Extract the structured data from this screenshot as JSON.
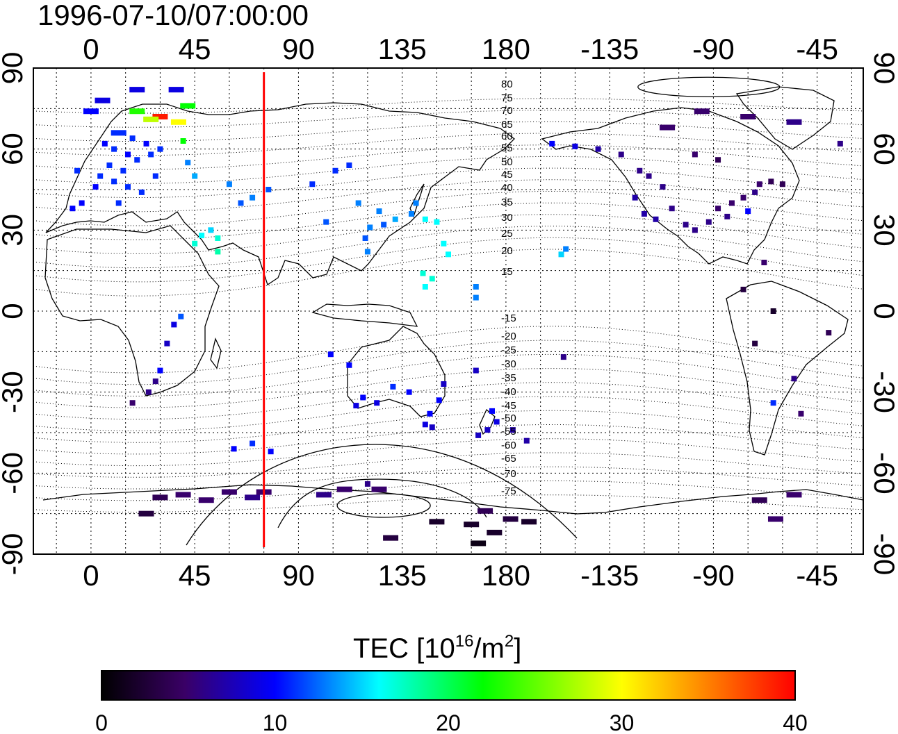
{
  "title": "1996-07-10/07:00:00",
  "map": {
    "lon_ticks_top": [
      "0",
      "45",
      "90",
      "135",
      "180",
      "-135",
      "-90",
      "-45"
    ],
    "lon_ticks_bottom": [
      "0",
      "45",
      "90",
      "135",
      "180",
      "-135",
      "-90",
      "-45"
    ],
    "lat_ticks_left": [
      "90",
      "60",
      "30",
      "0",
      "-30",
      "-60",
      "-90"
    ],
    "lat_ticks_right": [
      "90",
      "60",
      "30",
      "0",
      "-30",
      "-60",
      "-90"
    ],
    "magnetic_lat_labels_north": [
      "80",
      "75",
      "70",
      "65",
      "60",
      "55",
      "50",
      "45",
      "40",
      "35",
      "30",
      "25",
      "20",
      "15"
    ],
    "magnetic_lat_labels_south": [
      "-15",
      "-20",
      "-25",
      "-30",
      "-35",
      "-40",
      "-45",
      "-50",
      "-55",
      "-60",
      "-65",
      "-70",
      "-75"
    ],
    "marker_line_longitude": 75,
    "marker_line_color": "#ff0000",
    "grid": true,
    "lon_range": [
      -25,
      335
    ],
    "lat_range": [
      -90,
      90
    ]
  },
  "colorbar": {
    "label_prefix": "TEC  [10",
    "label_sup1": "16",
    "label_mid": "/m",
    "label_sup2": "2",
    "label_suffix": "]",
    "ticks": [
      "0",
      "10",
      "20",
      "30",
      "40"
    ],
    "range": [
      0,
      40
    ],
    "colors": [
      "#000000",
      "#3a0066",
      "#0000ff",
      "#00ffff",
      "#00ff00",
      "#ffff00",
      "#ff0000"
    ]
  },
  "tec_cells": [
    {
      "lon": 12,
      "lat": 66,
      "tec": 11
    },
    {
      "lon": 18,
      "lat": 64,
      "tec": 11
    },
    {
      "lon": 24,
      "lat": 62,
      "tec": 10
    },
    {
      "lon": 10,
      "lat": 60,
      "tec": 11
    },
    {
      "lon": 16,
      "lat": 58,
      "tec": 10
    },
    {
      "lon": 20,
      "lat": 56,
      "tec": 11
    },
    {
      "lon": 8,
      "lat": 54,
      "tec": 11
    },
    {
      "lon": 14,
      "lat": 52,
      "tec": 11
    },
    {
      "lon": 4,
      "lat": 50,
      "tec": 11
    },
    {
      "lon": 10,
      "lat": 48,
      "tec": 11
    },
    {
      "lon": 2,
      "lat": 46,
      "tec": 10
    },
    {
      "lon": 16,
      "lat": 46,
      "tec": 11
    },
    {
      "lon": 26,
      "lat": 58,
      "tec": 11
    },
    {
      "lon": 30,
      "lat": 60,
      "tec": 11
    },
    {
      "lon": 12,
      "lat": 40,
      "tec": 11
    },
    {
      "lon": -4,
      "lat": 40,
      "tec": 10
    },
    {
      "lon": -8,
      "lat": 38,
      "tec": 10
    },
    {
      "lon": 22,
      "lat": 44,
      "tec": 11
    },
    {
      "lon": 28,
      "lat": 50,
      "tec": 11
    },
    {
      "lon": 6,
      "lat": 62,
      "tec": 10
    },
    {
      "lon": -6,
      "lat": 52,
      "tec": 11
    },
    {
      "lon": 20,
      "lat": 82,
      "tec": 9
    },
    {
      "lon": 37,
      "lat": 82,
      "tec": 9
    },
    {
      "lon": 5,
      "lat": 78,
      "tec": 9
    },
    {
      "lon": 0,
      "lat": 74,
      "tec": 10
    },
    {
      "lon": 20,
      "lat": 74,
      "tec": 23
    },
    {
      "lon": 30,
      "lat": 72,
      "tec": 39
    },
    {
      "lon": 26,
      "lat": 71,
      "tec": 28
    },
    {
      "lon": 38,
      "lat": 70,
      "tec": 30
    },
    {
      "lon": 42,
      "lat": 76,
      "tec": 22
    },
    {
      "lon": 40,
      "lat": 63,
      "tec": 22
    },
    {
      "lon": 42,
      "lat": 55,
      "tec": 13
    },
    {
      "lon": 45,
      "lat": 50,
      "tec": 14
    },
    {
      "lon": 60,
      "lat": 47,
      "tec": 13
    },
    {
      "lon": 65,
      "lat": 40,
      "tec": 12
    },
    {
      "lon": 70,
      "lat": 42,
      "tec": 13
    },
    {
      "lon": 77,
      "lat": 45,
      "tec": 12
    },
    {
      "lon": 48,
      "lat": 28,
      "tec": 16
    },
    {
      "lon": 52,
      "lat": 30,
      "tec": 15
    },
    {
      "lon": 45,
      "lat": 25,
      "tec": 17
    },
    {
      "lon": 55,
      "lat": 27,
      "tec": 17
    },
    {
      "lon": 55,
      "lat": 22,
      "tec": 18
    },
    {
      "lon": 96,
      "lat": 47,
      "tec": 11
    },
    {
      "lon": 106,
      "lat": 52,
      "tec": 11
    },
    {
      "lon": 112,
      "lat": 54,
      "tec": 11
    },
    {
      "lon": 116,
      "lat": 40,
      "tec": 13
    },
    {
      "lon": 121,
      "lat": 31,
      "tec": 13
    },
    {
      "lon": 125,
      "lat": 37,
      "tec": 13
    },
    {
      "lon": 119,
      "lat": 27,
      "tec": 12
    },
    {
      "lon": 120,
      "lat": 22,
      "tec": 13
    },
    {
      "lon": 127,
      "lat": 32,
      "tec": 12
    },
    {
      "lon": 132,
      "lat": 34,
      "tec": 14
    },
    {
      "lon": 139,
      "lat": 36,
      "tec": 13
    },
    {
      "lon": 141,
      "lat": 40,
      "tec": 13
    },
    {
      "lon": 145,
      "lat": 34,
      "tec": 16
    },
    {
      "lon": 150,
      "lat": 33,
      "tec": 16
    },
    {
      "lon": 102,
      "lat": 33,
      "tec": 12
    },
    {
      "lon": 153,
      "lat": 25,
      "tec": 16
    },
    {
      "lon": 155,
      "lat": 21,
      "tec": 16
    },
    {
      "lon": 144,
      "lat": 14,
      "tec": 17
    },
    {
      "lon": 148,
      "lat": 12,
      "tec": 17
    },
    {
      "lon": 145,
      "lat": 9,
      "tec": 16
    },
    {
      "lon": 167,
      "lat": 9,
      "tec": 13
    },
    {
      "lon": 167,
      "lat": 5,
      "tec": 13
    },
    {
      "lon": 204,
      "lat": 21,
      "tec": 15
    },
    {
      "lon": 206,
      "lat": 23,
      "tec": 13
    },
    {
      "lon": 39,
      "lat": -2,
      "tec": 12
    },
    {
      "lon": 36,
      "lat": -5,
      "tec": 9
    },
    {
      "lon": 33,
      "lat": -12,
      "tec": 8
    },
    {
      "lon": 28,
      "lat": -26,
      "tec": 6
    },
    {
      "lon": 25,
      "lat": -30,
      "tec": 6
    },
    {
      "lon": 18,
      "lat": -34,
      "tec": 5
    },
    {
      "lon": 30,
      "lat": -22,
      "tec": 10
    },
    {
      "lon": 104,
      "lat": -16,
      "tec": 10
    },
    {
      "lon": 112,
      "lat": -20,
      "tec": 10
    },
    {
      "lon": 118,
      "lat": -32,
      "tec": 10
    },
    {
      "lon": 115,
      "lat": -35,
      "tec": 9
    },
    {
      "lon": 124,
      "lat": -34,
      "tec": 9
    },
    {
      "lon": 131,
      "lat": -28,
      "tec": 11
    },
    {
      "lon": 138,
      "lat": -30,
      "tec": 10
    },
    {
      "lon": 147,
      "lat": -38,
      "tec": 10
    },
    {
      "lon": 151,
      "lat": -33,
      "tec": 10
    },
    {
      "lon": 145,
      "lat": -42,
      "tec": 9
    },
    {
      "lon": 153,
      "lat": -27,
      "tec": 8
    },
    {
      "lon": 167,
      "lat": -22,
      "tec": 8
    },
    {
      "lon": 174,
      "lat": -37,
      "tec": 10
    },
    {
      "lon": 176,
      "lat": -41,
      "tec": 9
    },
    {
      "lon": 172,
      "lat": -44,
      "tec": 8
    },
    {
      "lon": 168,
      "lat": -46,
      "tec": 8
    },
    {
      "lon": 183,
      "lat": -44,
      "tec": 7
    },
    {
      "lon": 189,
      "lat": -48,
      "tec": 7
    },
    {
      "lon": 205,
      "lat": -17,
      "tec": 6
    },
    {
      "lon": 148,
      "lat": -43,
      "tec": 8
    },
    {
      "lon": 70,
      "lat": -49,
      "tec": 11
    },
    {
      "lon": 78,
      "lat": -52,
      "tec": 10
    },
    {
      "lon": 62,
      "lat": -51,
      "tec": 10
    },
    {
      "lon": 30,
      "lat": -69,
      "tec": 4
    },
    {
      "lon": 40,
      "lat": -68,
      "tec": 5
    },
    {
      "lon": 50,
      "lat": -70,
      "tec": 5
    },
    {
      "lon": 60,
      "lat": -67,
      "tec": 5
    },
    {
      "lon": 70,
      "lat": -69,
      "tec": 6
    },
    {
      "lon": 75,
      "lat": -67,
      "tec": 5
    },
    {
      "lon": 24,
      "lat": -75,
      "tec": 3
    },
    {
      "lon": 110,
      "lat": -66,
      "tec": 5
    },
    {
      "lon": 101,
      "lat": -68,
      "tec": 6
    },
    {
      "lon": 120,
      "lat": -64,
      "tec": 6
    },
    {
      "lon": 125,
      "lat": -66,
      "tec": 5
    },
    {
      "lon": 130,
      "lat": -84,
      "tec": 3
    },
    {
      "lon": 150,
      "lat": -78,
      "tec": 2
    },
    {
      "lon": 165,
      "lat": -79,
      "tec": 2
    },
    {
      "lon": 175,
      "lat": -82,
      "tec": 2
    },
    {
      "lon": 182,
      "lat": -77,
      "tec": 3
    },
    {
      "lon": 190,
      "lat": -78,
      "tec": 2
    },
    {
      "lon": 168,
      "lat": -86,
      "tec": 1
    },
    {
      "lon": 171,
      "lat": -74,
      "tec": 4
    },
    {
      "lon": 200,
      "lat": 62,
      "tec": 10
    },
    {
      "lon": 210,
      "lat": 61,
      "tec": 9
    },
    {
      "lon": 220,
      "lat": 60,
      "tec": 7
    },
    {
      "lon": 230,
      "lat": 58,
      "tec": 6
    },
    {
      "lon": 238,
      "lat": 52,
      "tec": 6
    },
    {
      "lon": 242,
      "lat": 50,
      "tec": 6
    },
    {
      "lon": 248,
      "lat": 46,
      "tec": 6
    },
    {
      "lon": 236,
      "lat": 42,
      "tec": 7
    },
    {
      "lon": 240,
      "lat": 36,
      "tec": 7
    },
    {
      "lon": 245,
      "lat": 34,
      "tec": 7
    },
    {
      "lon": 252,
      "lat": 38,
      "tec": 6
    },
    {
      "lon": 258,
      "lat": 32,
      "tec": 6
    },
    {
      "lon": 262,
      "lat": 30,
      "tec": 6
    },
    {
      "lon": 268,
      "lat": 33,
      "tec": 6
    },
    {
      "lon": 272,
      "lat": 38,
      "tec": 5
    },
    {
      "lon": 278,
      "lat": 40,
      "tec": 5
    },
    {
      "lon": 283,
      "lat": 42,
      "tec": 5
    },
    {
      "lon": 288,
      "lat": 44,
      "tec": 6
    },
    {
      "lon": 276,
      "lat": 35,
      "tec": 6
    },
    {
      "lon": 285,
      "lat": 37,
      "tec": 10
    },
    {
      "lon": 290,
      "lat": 47,
      "tec": 5
    },
    {
      "lon": 295,
      "lat": 48,
      "tec": 4
    },
    {
      "lon": 300,
      "lat": 47,
      "tec": 4
    },
    {
      "lon": 262,
      "lat": 58,
      "tec": 5
    },
    {
      "lon": 272,
      "lat": 56,
      "tec": 4
    },
    {
      "lon": 285,
      "lat": 72,
      "tec": 5
    },
    {
      "lon": 265,
      "lat": 74,
      "tec": 5
    },
    {
      "lon": 250,
      "lat": 68,
      "tec": 5
    },
    {
      "lon": 305,
      "lat": 70,
      "tec": 6
    },
    {
      "lon": 325,
      "lat": 62,
      "tec": 6
    },
    {
      "lon": 292,
      "lat": 18,
      "tec": 5
    },
    {
      "lon": 283,
      "lat": 8,
      "tec": 3
    },
    {
      "lon": 296,
      "lat": 0,
      "tec": 2
    },
    {
      "lon": 288,
      "lat": -12,
      "tec": 3
    },
    {
      "lon": 305,
      "lat": -25,
      "tec": 6
    },
    {
      "lon": 296,
      "lat": -34,
      "tec": 11
    },
    {
      "lon": 308,
      "lat": -38,
      "tec": 5
    },
    {
      "lon": 320,
      "lat": -8,
      "tec": 4
    },
    {
      "lon": 290,
      "lat": -70,
      "tec": 4
    },
    {
      "lon": 305,
      "lat": -68,
      "tec": 5
    },
    {
      "lon": 297,
      "lat": -77,
      "tec": 5
    }
  ]
}
